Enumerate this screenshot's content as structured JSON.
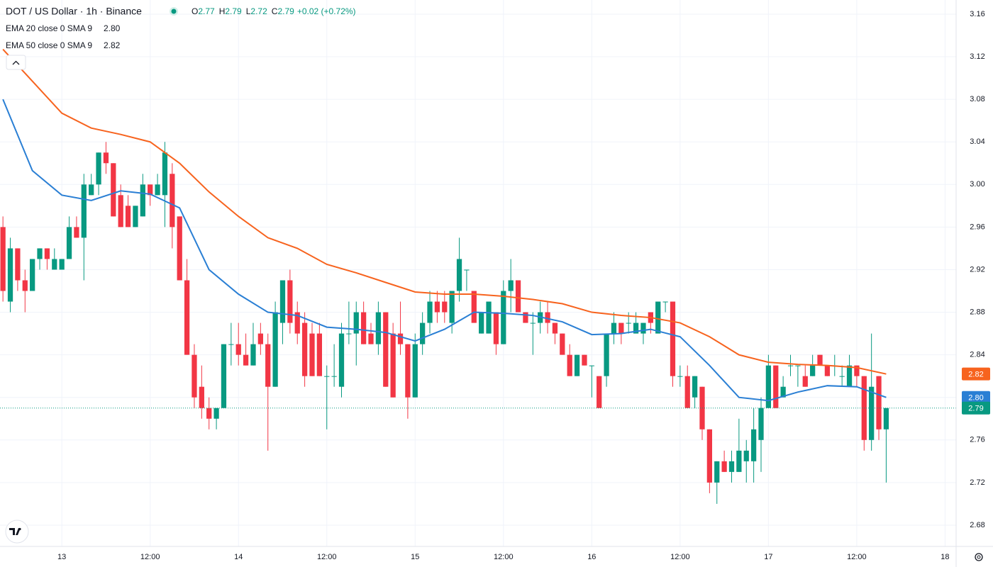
{
  "chart_data": {
    "type": "candlestick",
    "title": "DOT / US Dollar · 1h · Binance",
    "ohlc_labels": [
      "O",
      "H",
      "L",
      "C"
    ],
    "change": "+0.02 (+0.72%)",
    "up_color": "#089981",
    "down_color": "#f23645",
    "x": [
      0,
      1,
      2,
      3,
      4,
      5,
      6,
      7,
      8,
      9,
      10,
      11,
      12,
      13,
      14,
      15,
      16,
      17,
      18,
      19,
      20,
      21,
      22,
      23,
      24,
      25,
      26,
      27,
      28,
      29,
      30,
      31,
      32,
      33,
      34,
      35,
      36,
      37,
      38,
      39,
      40,
      41,
      42,
      43,
      44,
      45,
      46,
      47,
      48,
      49,
      50,
      51,
      52,
      53,
      54,
      55,
      56,
      57,
      58,
      59,
      60,
      61,
      62,
      63,
      64,
      65,
      66,
      67,
      68,
      69,
      70,
      71,
      72,
      73,
      74,
      75,
      76,
      77,
      78,
      79,
      80,
      81,
      82,
      83,
      84,
      85,
      86,
      87,
      88,
      89,
      90,
      91,
      92,
      93,
      94,
      95,
      96,
      97,
      98,
      99,
      100,
      101,
      102,
      103,
      104,
      105,
      106,
      107,
      108,
      109,
      110,
      111,
      112,
      113,
      114,
      115,
      116,
      117,
      118,
      119,
      120
    ],
    "open": [
      2.96,
      2.89,
      2.94,
      2.91,
      2.9,
      2.93,
      2.94,
      2.92,
      2.92,
      2.93,
      2.96,
      2.95,
      2.99,
      3.0,
      3.03,
      3.02,
      2.99,
      2.98,
      2.96,
      2.97,
      3.0,
      2.99,
      2.99,
      3.01,
      2.97,
      2.91,
      2.84,
      2.81,
      2.79,
      2.78,
      2.79,
      2.85,
      2.85,
      2.84,
      2.83,
      2.86,
      2.85,
      2.81,
      2.87,
      2.91,
      2.88,
      2.87,
      2.86,
      2.86,
      2.82,
      2.82,
      2.81,
      2.86,
      2.86,
      2.88,
      2.86,
      2.85,
      2.88,
      2.86,
      2.86,
      2.85,
      2.8,
      2.85,
      2.87,
      2.89,
      2.89,
      2.87,
      2.9,
      2.92,
      2.9,
      2.86,
      2.86,
      2.88,
      2.85,
      2.9,
      2.91,
      2.88,
      2.87,
      2.87,
      2.88,
      2.87,
      2.86,
      2.84,
      2.82,
      2.84,
      2.83,
      2.82,
      2.82,
      2.86,
      2.87,
      2.87,
      2.86,
      2.86,
      2.88,
      2.86,
      2.89,
      2.89,
      2.82,
      2.82,
      2.8,
      2.81,
      2.77,
      2.72,
      2.74,
      2.73,
      2.73,
      2.74,
      2.74,
      2.76,
      2.79,
      2.83,
      2.8,
      2.83,
      2.83,
      2.82,
      2.82,
      2.84,
      2.83,
      2.83,
      2.82,
      2.81,
      2.83,
      2.82,
      2.76,
      2.82,
      2.77
    ],
    "high": [
      2.97,
      2.95,
      2.94,
      2.92,
      2.93,
      2.94,
      2.94,
      2.94,
      2.93,
      2.97,
      2.97,
      3.01,
      3.01,
      3.03,
      3.04,
      3.02,
      3.0,
      2.99,
      2.98,
      3.01,
      3.0,
      3.01,
      3.04,
      3.02,
      2.97,
      2.93,
      2.85,
      2.83,
      2.8,
      2.79,
      2.85,
      2.87,
      2.87,
      2.86,
      2.87,
      2.87,
      2.86,
      2.89,
      2.91,
      2.92,
      2.89,
      2.88,
      2.87,
      2.87,
      2.83,
      2.85,
      2.87,
      2.89,
      2.89,
      2.89,
      2.87,
      2.89,
      2.88,
      2.87,
      2.89,
      2.85,
      2.86,
      2.88,
      2.9,
      2.9,
      2.9,
      2.9,
      2.95,
      2.92,
      2.9,
      2.88,
      2.89,
      2.88,
      2.91,
      2.93,
      2.91,
      2.88,
      2.88,
      2.89,
      2.89,
      2.87,
      2.86,
      2.85,
      2.84,
      2.84,
      2.83,
      2.82,
      2.86,
      2.88,
      2.87,
      2.88,
      2.88,
      2.87,
      2.88,
      2.89,
      2.89,
      2.89,
      2.83,
      2.83,
      2.82,
      2.81,
      2.77,
      2.74,
      2.75,
      2.75,
      2.78,
      2.76,
      2.79,
      2.8,
      2.84,
      2.83,
      2.82,
      2.84,
      2.83,
      2.83,
      2.84,
      2.84,
      2.83,
      2.84,
      2.83,
      2.84,
      2.83,
      2.82,
      2.86,
      2.82,
      2.79
    ],
    "low": [
      2.89,
      2.88,
      2.9,
      2.88,
      2.9,
      2.92,
      2.92,
      2.92,
      2.92,
      2.93,
      2.95,
      2.91,
      2.99,
      2.99,
      3.01,
      2.97,
      2.96,
      2.96,
      2.96,
      2.97,
      2.98,
      2.99,
      2.96,
      2.94,
      2.91,
      2.84,
      2.79,
      2.78,
      2.77,
      2.77,
      2.79,
      2.83,
      2.83,
      2.83,
      2.83,
      2.84,
      2.75,
      2.81,
      2.85,
      2.86,
      2.85,
      2.81,
      2.82,
      2.82,
      2.77,
      2.81,
      2.8,
      2.85,
      2.83,
      2.85,
      2.85,
      2.84,
      2.81,
      2.8,
      2.84,
      2.78,
      2.8,
      2.84,
      2.86,
      2.87,
      2.87,
      2.86,
      2.89,
      2.9,
      2.87,
      2.86,
      2.86,
      2.84,
      2.85,
      2.88,
      2.88,
      2.87,
      2.84,
      2.86,
      2.86,
      2.85,
      2.84,
      2.82,
      2.82,
      2.83,
      2.8,
      2.79,
      2.81,
      2.85,
      2.85,
      2.86,
      2.86,
      2.85,
      2.86,
      2.86,
      2.88,
      2.81,
      2.81,
      2.79,
      2.79,
      2.76,
      2.71,
      2.7,
      2.73,
      2.72,
      2.73,
      2.72,
      2.72,
      2.73,
      2.79,
      2.79,
      2.8,
      2.82,
      2.81,
      2.81,
      2.82,
      2.83,
      2.82,
      2.82,
      2.81,
      2.81,
      2.81,
      2.75,
      2.75,
      2.76,
      2.72
    ],
    "close": [
      2.9,
      2.94,
      2.91,
      2.9,
      2.93,
      2.94,
      2.93,
      2.93,
      2.93,
      2.96,
      2.95,
      3.0,
      3.0,
      3.03,
      3.02,
      2.97,
      2.96,
      2.96,
      2.98,
      3.0,
      2.99,
      3.0,
      3.03,
      2.96,
      2.91,
      2.84,
      2.8,
      2.79,
      2.78,
      2.79,
      2.85,
      2.85,
      2.84,
      2.83,
      2.85,
      2.85,
      2.81,
      2.88,
      2.91,
      2.87,
      2.86,
      2.82,
      2.82,
      2.82,
      2.82,
      2.82,
      2.86,
      2.86,
      2.88,
      2.85,
      2.85,
      2.88,
      2.81,
      2.8,
      2.85,
      2.8,
      2.85,
      2.87,
      2.89,
      2.88,
      2.88,
      2.9,
      2.93,
      2.92,
      2.87,
      2.88,
      2.89,
      2.85,
      2.9,
      2.91,
      2.88,
      2.87,
      2.87,
      2.88,
      2.87,
      2.86,
      2.84,
      2.82,
      2.84,
      2.83,
      2.83,
      2.79,
      2.86,
      2.87,
      2.86,
      2.87,
      2.87,
      2.87,
      2.87,
      2.89,
      2.89,
      2.82,
      2.82,
      2.79,
      2.82,
      2.77,
      2.72,
      2.74,
      2.73,
      2.74,
      2.75,
      2.75,
      2.77,
      2.79,
      2.83,
      2.79,
      2.81,
      2.83,
      2.83,
      2.81,
      2.83,
      2.83,
      2.82,
      2.83,
      2.82,
      2.83,
      2.82,
      2.76,
      2.81,
      2.77,
      2.79
    ],
    "series": [
      {
        "name": "EMA 20 close 0 SMA 9",
        "color": "#2a7fd4",
        "x": [
          0,
          4,
          8,
          12,
          16,
          20,
          24,
          28,
          32,
          36,
          40,
          44,
          48,
          52,
          56,
          60,
          64,
          68,
          72,
          76,
          80,
          84,
          88,
          92,
          96,
          100,
          104,
          108,
          112,
          116,
          120
        ],
        "values": [
          3.08,
          3.013,
          2.99,
          2.985,
          2.994,
          2.991,
          2.978,
          2.92,
          2.897,
          2.88,
          2.877,
          2.866,
          2.864,
          2.861,
          2.853,
          2.864,
          2.88,
          2.879,
          2.877,
          2.871,
          2.859,
          2.86,
          2.864,
          2.857,
          2.83,
          2.8,
          2.797,
          2.805,
          2.811,
          2.81,
          2.8
        ],
        "value_labels": [
          null,
          null,
          null,
          null,
          null,
          null,
          null,
          null,
          null,
          null,
          null,
          null,
          null,
          null,
          null,
          null,
          null,
          null,
          null,
          null,
          null,
          null,
          null,
          null,
          null,
          null,
          null,
          null,
          null,
          null,
          "2.80"
        ]
      },
      {
        "name": "EMA 50 close 0 SMA 9",
        "color": "#f7631e",
        "x": [
          0,
          4,
          8,
          12,
          16,
          20,
          24,
          28,
          32,
          36,
          40,
          44,
          48,
          52,
          56,
          60,
          64,
          68,
          72,
          76,
          80,
          84,
          88,
          92,
          96,
          100,
          104,
          108,
          112,
          116,
          120
        ],
        "values": [
          3.127,
          3.097,
          3.067,
          3.053,
          3.047,
          3.04,
          3.02,
          2.993,
          2.97,
          2.95,
          2.94,
          2.925,
          2.917,
          2.908,
          2.899,
          2.897,
          2.897,
          2.895,
          2.892,
          2.888,
          2.88,
          2.877,
          2.875,
          2.87,
          2.857,
          2.84,
          2.833,
          2.831,
          2.83,
          2.828,
          2.822
        ],
        "value_labels": [
          null,
          null,
          null,
          null,
          null,
          null,
          null,
          null,
          null,
          null,
          null,
          null,
          null,
          null,
          null,
          null,
          null,
          null,
          null,
          null,
          null,
          null,
          null,
          null,
          null,
          null,
          null,
          null,
          null,
          null,
          "2.82"
        ]
      }
    ],
    "xlim": [
      -0.4,
      129.5
    ],
    "xticks": [
      {
        "value": 8,
        "label": "13"
      },
      {
        "value": 20,
        "label": "12:00"
      },
      {
        "value": 32,
        "label": "14"
      },
      {
        "value": 44,
        "label": "12:00"
      },
      {
        "value": 56,
        "label": "15"
      },
      {
        "value": 68,
        "label": "12:00"
      },
      {
        "value": 80,
        "label": "16"
      },
      {
        "value": 92,
        "label": "12:00"
      },
      {
        "value": 104,
        "label": "17"
      },
      {
        "value": 116,
        "label": "12:00"
      },
      {
        "value": 128,
        "label": "18"
      }
    ],
    "ylim": [
      2.66,
      3.1733
    ],
    "yticks": [
      {
        "value": 2.68,
        "label": "2.68"
      },
      {
        "value": 2.72,
        "label": "2.72"
      },
      {
        "value": 2.76,
        "label": "2.76"
      },
      {
        "value": 2.8,
        "label": "2.80"
      },
      {
        "value": 2.84,
        "label": "2.84"
      },
      {
        "value": 2.88,
        "label": "2.88"
      },
      {
        "value": 2.92,
        "label": "2.92"
      },
      {
        "value": 2.96,
        "label": "2.96"
      },
      {
        "value": 3.0,
        "label": "3.00"
      },
      {
        "value": 3.04,
        "label": "3.04"
      },
      {
        "value": 3.08,
        "label": "3.08"
      },
      {
        "value": 3.12,
        "label": "3.12"
      },
      {
        "value": 3.16,
        "label": "3.16"
      }
    ],
    "grid": true
  }
}
